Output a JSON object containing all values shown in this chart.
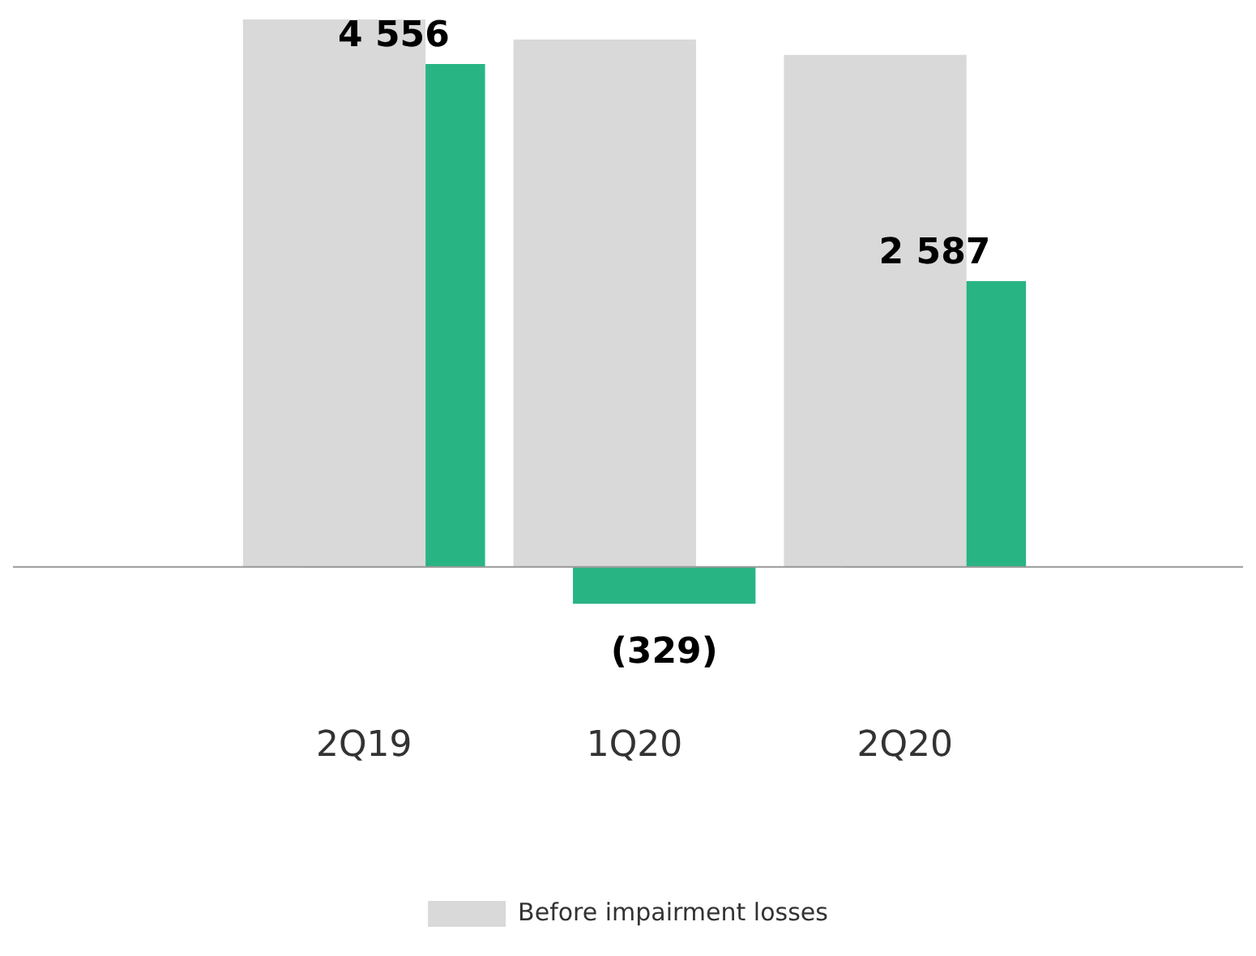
{
  "chart_data": {
    "type": "bar",
    "categories": [
      "2Q19",
      "1Q20",
      "2Q20"
    ],
    "series": [
      {
        "name": "Before impairment losses",
        "color": "#d9d9d9",
        "values": [
          4965,
          4778,
          4638
        ]
      },
      {
        "color": "#29b483",
        "values": [
          4556,
          -329,
          2587
        ],
        "value_labels": [
          "4 556",
          "(329)",
          "2 587"
        ]
      }
    ],
    "legend": "bottom",
    "grid": false
  }
}
